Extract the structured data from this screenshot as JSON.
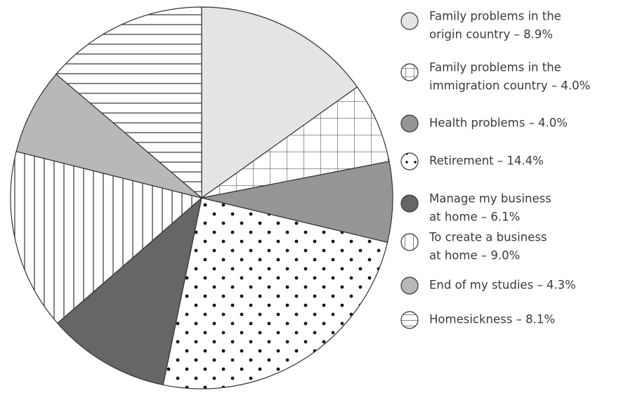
{
  "chart_data": {
    "type": "pie",
    "categories": [
      [
        "Family problems in the",
        "origin country – 8.9%"
      ],
      [
        "Family problems in the",
        "immigration country – 4.0%"
      ],
      [
        "Health problems – 4.0%"
      ],
      [
        "Retirement – 14.4%"
      ],
      [
        "Manage my business",
        "at home – 6.1%"
      ],
      [
        "To create a business",
        "at home – 9.0%"
      ],
      [
        "End of my studies – 4.3%"
      ],
      [
        "Homesickness – 8.1%"
      ]
    ],
    "values": [
      8.9,
      4.0,
      4.0,
      14.4,
      6.1,
      9.0,
      4.3,
      8.1
    ],
    "colors": [
      "#e4e4e4",
      "#ffffff",
      "#969696",
      "#ffffff",
      "#666666",
      "#ffffff",
      "#b8b8b8",
      "#ffffff"
    ],
    "patterns": [
      "solid",
      "grid",
      "solid",
      "dots",
      "solid",
      "vlines",
      "solid",
      "hlines"
    ]
  }
}
